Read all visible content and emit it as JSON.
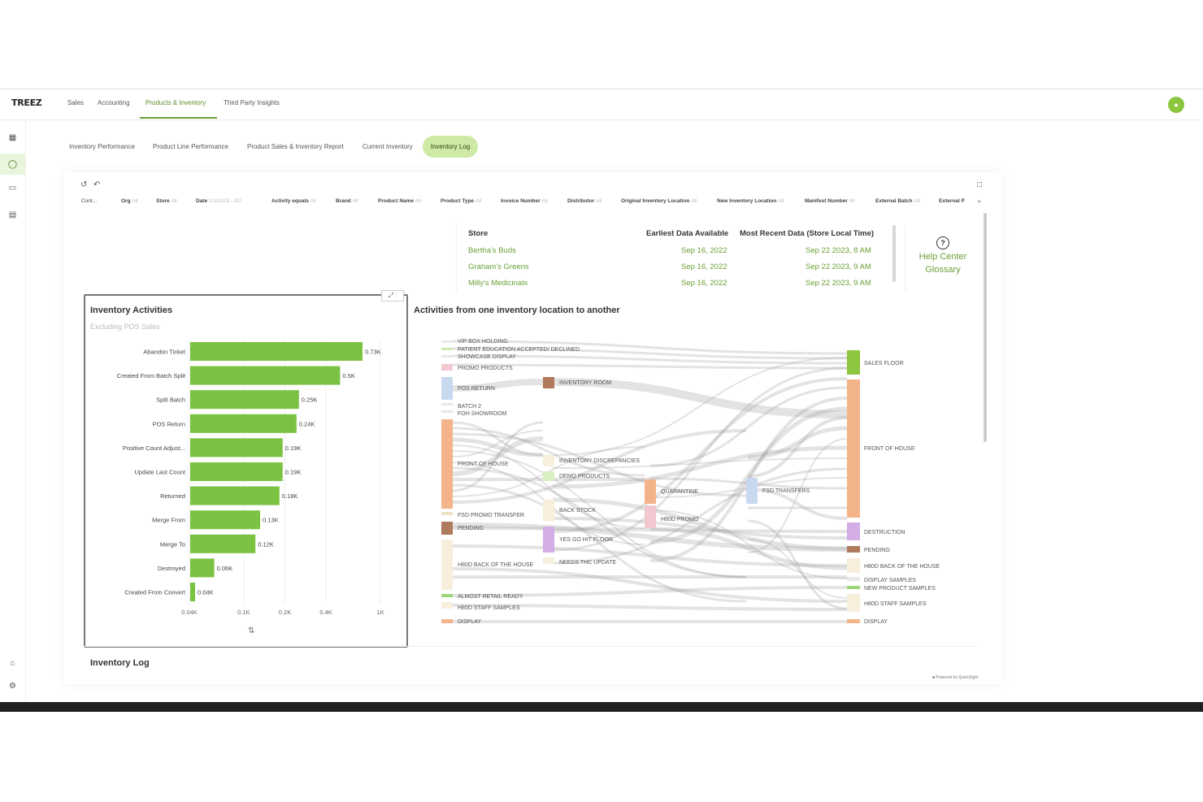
{
  "app": {
    "logo": "TREEZ"
  },
  "top_nav": [
    {
      "label": "Sales"
    },
    {
      "label": "Accounting"
    },
    {
      "label": "Products & Inventory"
    },
    {
      "label": "Third Party Insights"
    }
  ],
  "tabs": [
    {
      "label": "Inventory Performance"
    },
    {
      "label": "Product Line Performance"
    },
    {
      "label": "Product Sales & Inventory Report"
    },
    {
      "label": "Current Inventory"
    },
    {
      "label": "Inventory Log"
    }
  ],
  "filters": [
    {
      "label": "Cont..."
    },
    {
      "label": "Org",
      "value": "All"
    },
    {
      "label": "Store",
      "value": "All"
    },
    {
      "label": "Date",
      "value": "1/1/2023 - 9/2.."
    },
    {
      "label": "Activity equals",
      "value": "All"
    },
    {
      "label": "Brand",
      "value": "All"
    },
    {
      "label": "Product Name",
      "value": "All"
    },
    {
      "label": "Product Type",
      "value": "All"
    },
    {
      "label": "Invoice Number",
      "value": "All"
    },
    {
      "label": "Distributor",
      "value": "All"
    },
    {
      "label": "Original Inventory Location",
      "value": "All"
    },
    {
      "label": "New Inventory Location",
      "value": "All"
    },
    {
      "label": "Manifest Number",
      "value": "All"
    },
    {
      "label": "External Batch",
      "value": "All"
    },
    {
      "label": "External P"
    }
  ],
  "store_table": {
    "headers": [
      "Store",
      "Earliest Data Available",
      "Most Recent Data (Store Local Time)"
    ],
    "rows": [
      [
        "Bertha's Buds",
        "Sep 16, 2022",
        "Sep 22 2023, 8 AM"
      ],
      [
        "Graham's Greens",
        "Sep 16, 2022",
        "Sep 22 2023, 9 AM"
      ],
      [
        "Milly's Medicinals",
        "Sep 16, 2022",
        "Sep 22 2023, 9 AM"
      ]
    ]
  },
  "help": {
    "line1": "Help Center",
    "line2": "Glossary"
  },
  "inventory_activities": {
    "title": "Inventory Activities",
    "subtitle": "Excluding POS Sales"
  },
  "sankey": {
    "title": "Activities from one inventory location to another",
    "left_nodes": [
      "VIP BOX HOLDING",
      "PATIENT EDUCATION ACCEPTED/ DECLINED",
      "SHOWCASE DISPLAY",
      "PROMO PRODUCTS",
      "POS RETURN",
      "BATCH 2",
      "FOH SHOWROOM",
      "FRONT OF HOUSE",
      "FSD PROMO TRANSFER",
      "PENDING",
      "H80D BACK OF THE HOUSE",
      "ALMOST RETAIL READY",
      "H80D STAFF SAMPLES",
      "DISPLAY"
    ],
    "mid_nodes": [
      "INVENTORY ROOM",
      "INVENTORY DISCREPANCIES",
      "DEMO PRODUCTS",
      "BACK STOCK",
      "YES GO HIT FLOOR",
      "NEEDS THC UPDATE",
      "QUARANTINE",
      "H80D PROMO",
      "FSD TRANSFERS"
    ],
    "right_nodes": [
      "SALES FLOOR",
      "FRONT OF HOUSE",
      "DESTRUCTION",
      "PENDING",
      "H80D BACK OF THE HOUSE",
      "DISPLAY SAMPLES",
      "NEW PRODUCT SAMPLES",
      "H80D STAFF SAMPLES",
      "DISPLAY"
    ]
  },
  "inventory_log": {
    "title": "Inventory Log"
  },
  "footer": {
    "powered": "Powered by QuickSight"
  },
  "colors": {
    "accent": "#8cc63f",
    "bar": "#7cc242",
    "link": "#6a9f34"
  },
  "chart_data": {
    "type": "bar",
    "orientation": "horizontal",
    "categories": [
      "Abandon Ticket",
      "Created From Batch Split",
      "Split Batch",
      "POS Return",
      "Positive Count Adjust...",
      "Update Last Count",
      "Returned",
      "Merge From",
      "Merge To",
      "Destroyed",
      "Created From Convert"
    ],
    "values": [
      730,
      500,
      250,
      240,
      190,
      190,
      180,
      130,
      120,
      60,
      40
    ],
    "value_labels": [
      "0.73K",
      "0.5K",
      "0.25K",
      "0.24K",
      "0.19K",
      "0.19K",
      "0.18K",
      "0.13K",
      "0.12K",
      "0.06K",
      "0.04K"
    ],
    "xscale": "log",
    "xticks": [
      {
        "value": 40,
        "label": "0.04K"
      },
      {
        "value": 100,
        "label": "0.1K"
      },
      {
        "value": 200,
        "label": "0.2K"
      },
      {
        "value": 400,
        "label": "0.4K"
      },
      {
        "value": 1000,
        "label": "1K"
      }
    ],
    "xlim": [
      40,
      1000
    ],
    "title": "Inventory Activities",
    "subtitle": "Excluding POS Sales",
    "color": "#7cc242"
  }
}
